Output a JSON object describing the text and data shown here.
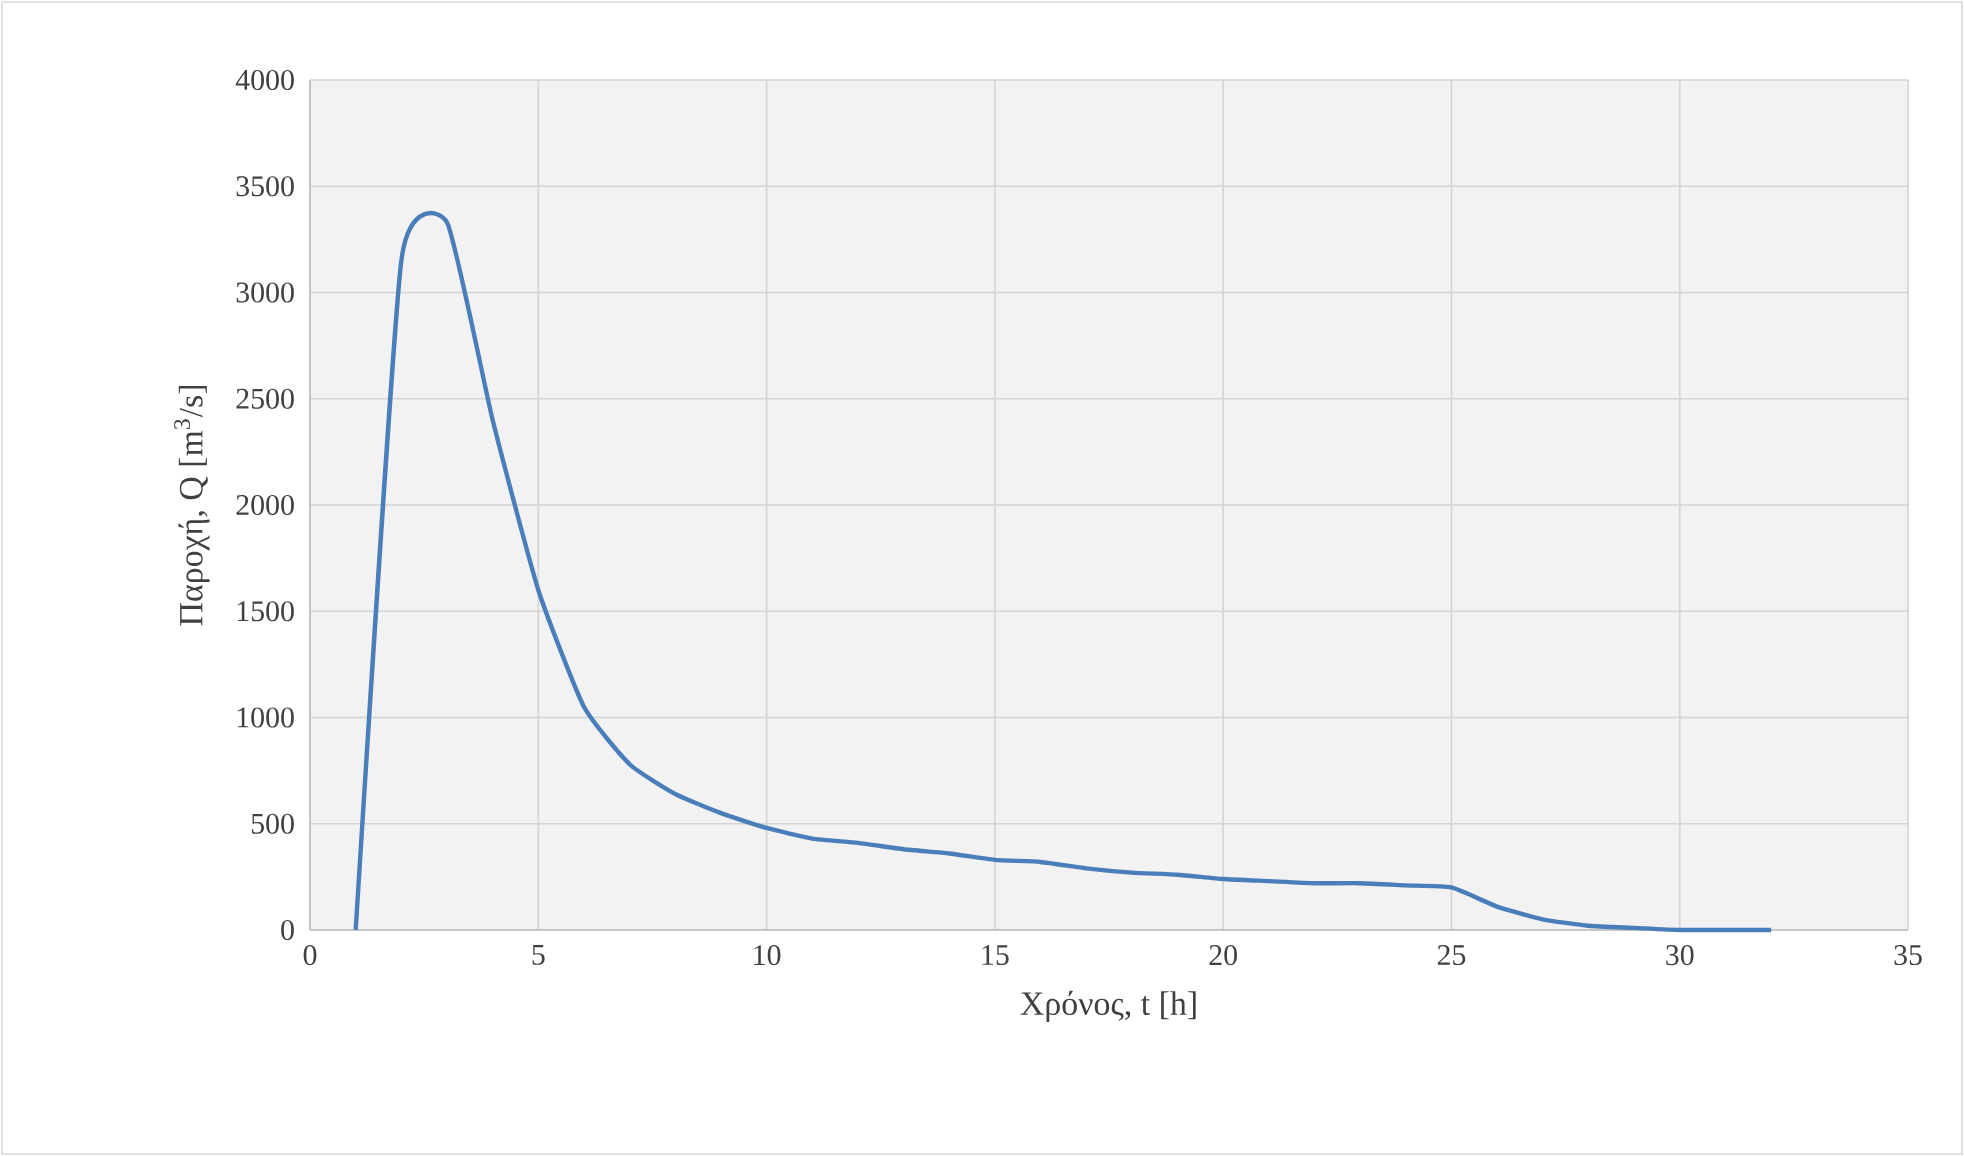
{
  "chart_data": {
    "type": "line",
    "xlabel": "Χρόνος, t [h]",
    "ylabel": "Παροχή, Q [m$^{3}$/s]",
    "x": [
      1,
      2,
      3,
      4,
      5,
      6,
      7,
      8,
      9,
      10,
      11,
      12,
      13,
      14,
      15,
      16,
      17,
      18,
      19,
      20,
      21,
      22,
      23,
      24,
      25,
      26,
      27,
      28,
      29,
      30,
      31,
      32
    ],
    "series": [
      {
        "color": "#4a7ebb",
        "values": [
          0,
          3150,
          3330,
          2400,
          1600,
          1050,
          780,
          640,
          550,
          480,
          430,
          410,
          380,
          360,
          330,
          320,
          290,
          270,
          260,
          240,
          230,
          220,
          220,
          210,
          200,
          110,
          50,
          20,
          10,
          0,
          0,
          0
        ]
      }
    ],
    "xlim": [
      0,
      35
    ],
    "ylim": [
      0,
      4000
    ],
    "xticks": [
      0,
      5,
      10,
      15,
      20,
      25,
      30,
      35
    ],
    "yticks": [
      0,
      500,
      1000,
      1500,
      2000,
      2500,
      3000,
      3500,
      4000
    ],
    "grid": true,
    "marker": "none",
    "line_style": "solid"
  }
}
